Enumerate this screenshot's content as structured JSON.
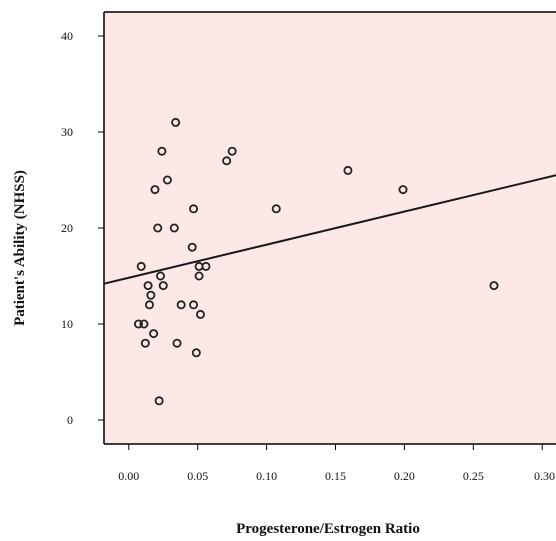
{
  "chart_data": {
    "type": "scatter",
    "title": "",
    "xlabel": "Progesterone/Estrogen Ratio",
    "ylabel": "Patient's Ability (NHSS)",
    "xlim": [
      -0.018,
      0.31
    ],
    "ylim": [
      -2.5,
      42.5
    ],
    "x_ticks": [
      0.0,
      0.05,
      0.1,
      0.15,
      0.2,
      0.25,
      0.3
    ],
    "x_tick_labels": [
      "0.00",
      "0.05",
      "0.10",
      "0.15",
      "0.20",
      "0.25",
      "0.30"
    ],
    "y_ticks": [
      0,
      10,
      20,
      30,
      40
    ],
    "y_tick_labels": [
      "0",
      "10",
      "20",
      "30",
      "40"
    ],
    "grid": false,
    "points": [
      {
        "x": 0.007,
        "y": 10
      },
      {
        "x": 0.011,
        "y": 10
      },
      {
        "x": 0.009,
        "y": 16
      },
      {
        "x": 0.012,
        "y": 8
      },
      {
        "x": 0.014,
        "y": 14
      },
      {
        "x": 0.015,
        "y": 12
      },
      {
        "x": 0.016,
        "y": 13
      },
      {
        "x": 0.018,
        "y": 9
      },
      {
        "x": 0.019,
        "y": 24
      },
      {
        "x": 0.021,
        "y": 20
      },
      {
        "x": 0.022,
        "y": 2
      },
      {
        "x": 0.023,
        "y": 15
      },
      {
        "x": 0.024,
        "y": 28
      },
      {
        "x": 0.025,
        "y": 14
      },
      {
        "x": 0.028,
        "y": 25
      },
      {
        "x": 0.033,
        "y": 20
      },
      {
        "x": 0.034,
        "y": 31
      },
      {
        "x": 0.035,
        "y": 8
      },
      {
        "x": 0.038,
        "y": 12
      },
      {
        "x": 0.046,
        "y": 18
      },
      {
        "x": 0.047,
        "y": 22
      },
      {
        "x": 0.047,
        "y": 12
      },
      {
        "x": 0.049,
        "y": 7
      },
      {
        "x": 0.051,
        "y": 16
      },
      {
        "x": 0.051,
        "y": 15
      },
      {
        "x": 0.052,
        "y": 11
      },
      {
        "x": 0.056,
        "y": 16
      },
      {
        "x": 0.071,
        "y": 27
      },
      {
        "x": 0.075,
        "y": 28
      },
      {
        "x": 0.107,
        "y": 22
      },
      {
        "x": 0.159,
        "y": 26
      },
      {
        "x": 0.199,
        "y": 24
      },
      {
        "x": 0.265,
        "y": 14
      }
    ],
    "regression_line": {
      "x": [
        -0.018,
        0.31
      ],
      "y": [
        14.2,
        25.5
      ]
    },
    "colors": {
      "plot_background": "#fde8e8",
      "point_stroke": "#222222",
      "line": "#1a1a1a",
      "axis": "#000000"
    }
  }
}
